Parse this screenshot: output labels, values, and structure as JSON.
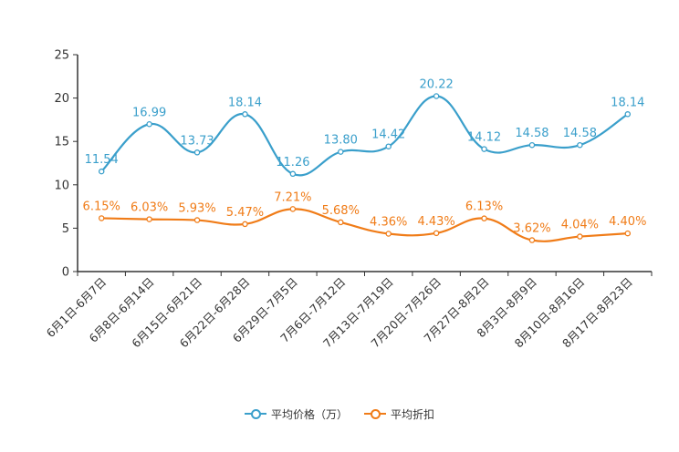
{
  "chart_data": {
    "type": "line",
    "title": "",
    "xlabel": "",
    "ylabel": "",
    "ylim": [
      0,
      25
    ],
    "yticks": [
      "0",
      "5",
      "10",
      "15",
      "20",
      "25"
    ],
    "categories": [
      "6月1日-6月7日",
      "6月8日-6月14日",
      "6月15日-6月21日",
      "6月22日-6月28日",
      "6月29日-7月5日",
      "7月6日-7月12日",
      "7月13日-7月19日",
      "7月20日-7月26日",
      "7月27日-8月2日",
      "8月3日-8月9日",
      "8月10日-8月16日",
      "8月17日-8月23日"
    ],
    "series": [
      {
        "name": "平均价格（万）",
        "color": "#3a9fcb",
        "values": [
          11.54,
          16.99,
          13.73,
          18.14,
          11.26,
          13.8,
          14.42,
          20.22,
          14.12,
          14.58,
          14.58,
          18.14
        ],
        "labels": [
          "11.54",
          "16.99",
          "13.73",
          "18.14",
          "11.26",
          "13.80",
          "14.42",
          "20.22",
          "14.12",
          "14.58",
          "14.58",
          "18.14"
        ]
      },
      {
        "name": "平均折扣",
        "color": "#f07c18",
        "values": [
          6.15,
          6.03,
          5.93,
          5.47,
          7.21,
          5.68,
          4.36,
          4.43,
          6.13,
          3.62,
          4.04,
          4.4
        ],
        "labels": [
          "6.15%",
          "6.03%",
          "5.93%",
          "5.47%",
          "7.21%",
          "5.68%",
          "4.36%",
          "4.43%",
          "6.13%",
          "3.62%",
          "4.04%",
          "4.40%"
        ]
      }
    ],
    "legend_position": "bottom-center"
  }
}
